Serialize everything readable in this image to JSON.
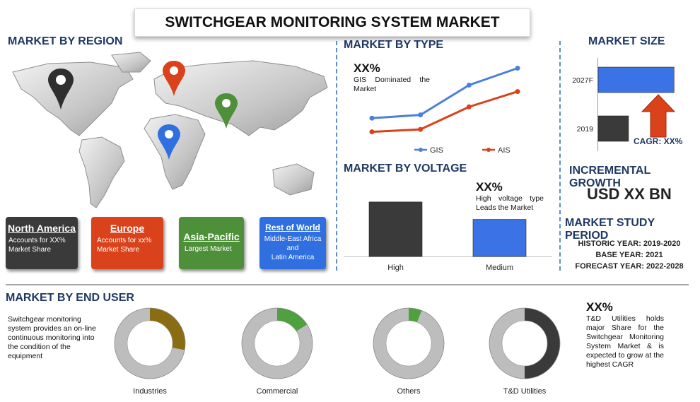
{
  "title": "SWITCHGEAR MONITORING SYSTEM MARKET",
  "region": {
    "heading": "MARKET BY REGION",
    "cards": [
      {
        "name": "North America",
        "lines": [
          "Accounts for XX%",
          "Market Share"
        ],
        "color": "#3a3a3a"
      },
      {
        "name": "Europe",
        "lines": [
          "Accounts for xx%",
          "Market Share"
        ],
        "color": "#d9421b"
      },
      {
        "name": "Asia-Pacific",
        "lines": [
          "Largest Market"
        ],
        "color": "#4e8f3a"
      },
      {
        "name": "Rest of World",
        "lines": [
          "Middle-East Africa",
          "and",
          "Latin America"
        ],
        "color": "#2f6fe0"
      }
    ],
    "pin_colors": {
      "north_america": "#2f2f2f",
      "europe": "#d9421b",
      "asia": "#4e8f3a",
      "africa": "#2f6fe0"
    }
  },
  "type": {
    "heading": "MARKET BY TYPE",
    "pct": "XX%",
    "note": "GIS Dominated the Market"
  },
  "voltage": {
    "heading": "MARKET BY VOLTAGE",
    "pct": "XX%",
    "note": "High voltage type Leads the Market"
  },
  "size": {
    "heading": "MARKET SIZE",
    "cagr": "CAGR: XX%"
  },
  "growth": {
    "heading": "INCREMENTAL GROWTH",
    "value": "USD XX BN"
  },
  "study": {
    "heading": "MARKET STUDY PERIOD",
    "historic": "HISTORIC YEAR: 2019-2020",
    "base": "BASE YEAR: 2021",
    "forecast": "FORECAST YEAR: 2022-2028"
  },
  "end_user": {
    "heading": "MARKET BY END USER",
    "desc": "Switchgear monitoring system provides an on-line continuous monitoring into the condition of the equipment",
    "pct": "XX%",
    "note": "T&D Utilities holds major Share for the Switchgear Monitoring System Market & is expected to grow at the highest CAGR"
  },
  "chart_data": [
    {
      "type": "line",
      "x": [
        1,
        2,
        3,
        4
      ],
      "series": [
        {
          "name": "GIS",
          "values": [
            2.0,
            2.4,
            6.1,
            8.2
          ],
          "color": "#4a7fe0"
        },
        {
          "name": "AIS",
          "values": [
            0.3,
            0.6,
            3.4,
            5.3
          ],
          "color": "#d9421b"
        }
      ],
      "ylim": [
        0,
        10
      ],
      "legend": "bottom"
    },
    {
      "type": "bar",
      "categories": [
        "High",
        "Medium"
      ],
      "values": [
        100,
        68
      ],
      "colors": [
        "#3a3a3a",
        "#3b73e6"
      ],
      "ylim": [
        0,
        140
      ]
    },
    {
      "type": "bar",
      "orientation": "horizontal",
      "categories": [
        "2027F",
        "2019"
      ],
      "values": [
        100,
        40
      ],
      "colors": [
        "#3b73e6",
        "#3a3a3a"
      ],
      "xlim": [
        0,
        110
      ]
    },
    {
      "type": "pie",
      "donuts": [
        {
          "label": "Industries",
          "share": 0.28,
          "color": "#8a6d12"
        },
        {
          "label": "Commercial",
          "share": 0.16,
          "color": "#4fa03f"
        },
        {
          "label": "Others",
          "share": 0.06,
          "color": "#4fa03f"
        },
        {
          "label": "T&D Utilities",
          "share": 0.5,
          "color": "#3a3a3a"
        }
      ],
      "rest_color": "#bdbdbd"
    }
  ]
}
